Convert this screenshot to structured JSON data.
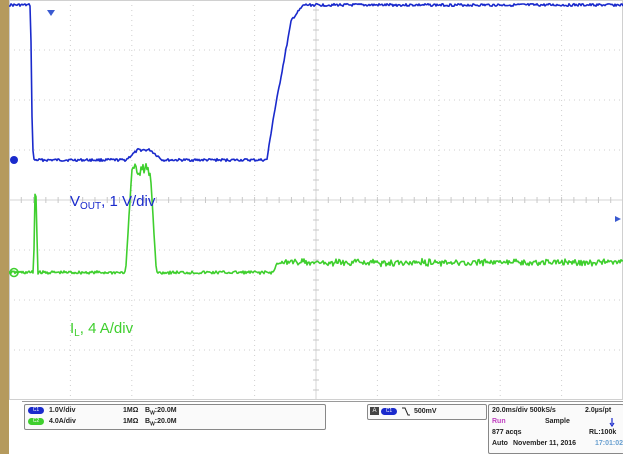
{
  "chart_data": {
    "type": "line",
    "title": "",
    "xlabel": "",
    "ylabel": "",
    "x_divisions": 10,
    "y_divisions": 8,
    "time_per_div_ms": 20.0,
    "xlim_ms": [
      0,
      200
    ],
    "grid": true,
    "series": [
      {
        "name": "VOUT, 1 V/div",
        "label_main": "V",
        "label_sub": "OUT",
        "label_rest": ", 1 V/div",
        "color": "#1a2acc",
        "units_per_div": "1 V/div",
        "x_ms": [
          0,
          7,
          7.6,
          8,
          38,
          42,
          46,
          50,
          84,
          86,
          92,
          96,
          200
        ],
        "y_div": [
          3.9,
          3.9,
          1.2,
          0.8,
          0.8,
          1.0,
          1.0,
          0.8,
          0.8,
          1.6,
          3.6,
          3.9,
          3.9
        ]
      },
      {
        "name": "IL, 4 A/div",
        "label_main": "I",
        "label_sub": "L",
        "label_rest": ", 4 A/div",
        "color": "#3fcf2e",
        "units_per_div": "4 A/div",
        "x_ms": [
          0,
          8,
          8.6,
          9.4,
          10,
          38,
          40,
          46,
          48,
          86,
          88,
          200
        ],
        "y_div": [
          -1.45,
          -1.45,
          0.55,
          -1.45,
          -1.45,
          -1.45,
          0.6,
          0.6,
          -1.45,
          -1.45,
          -1.3,
          -1.3
        ]
      }
    ]
  },
  "scope_info": {
    "ch1_scale": "1.0V/div",
    "ch1_impedance": "1MΩ",
    "ch1_bandwidth": "20.0M",
    "ch2_scale": "4.0A/div",
    "ch2_impedance": "1MΩ",
    "ch2_bandwidth": "20.0M",
    "trigger_level": "500mV",
    "timebase": "20.0ms/div 500kS/s",
    "sample_interval": "2.0µs/pt",
    "run_state": "Run",
    "mode": "Sample",
    "acqs": "877 acqs",
    "record_length": "RL:100k",
    "trigger_mode": "Auto",
    "date": "November 11, 2016",
    "time": "17:01:02",
    "ch1_color": "#1a2acc",
    "ch2_color": "#3fcf2e",
    "ch1_tag": "C1",
    "ch2_tag": "C2",
    "bw_letter": "B",
    "bw_sub": "W",
    "trig_tag": "A"
  }
}
